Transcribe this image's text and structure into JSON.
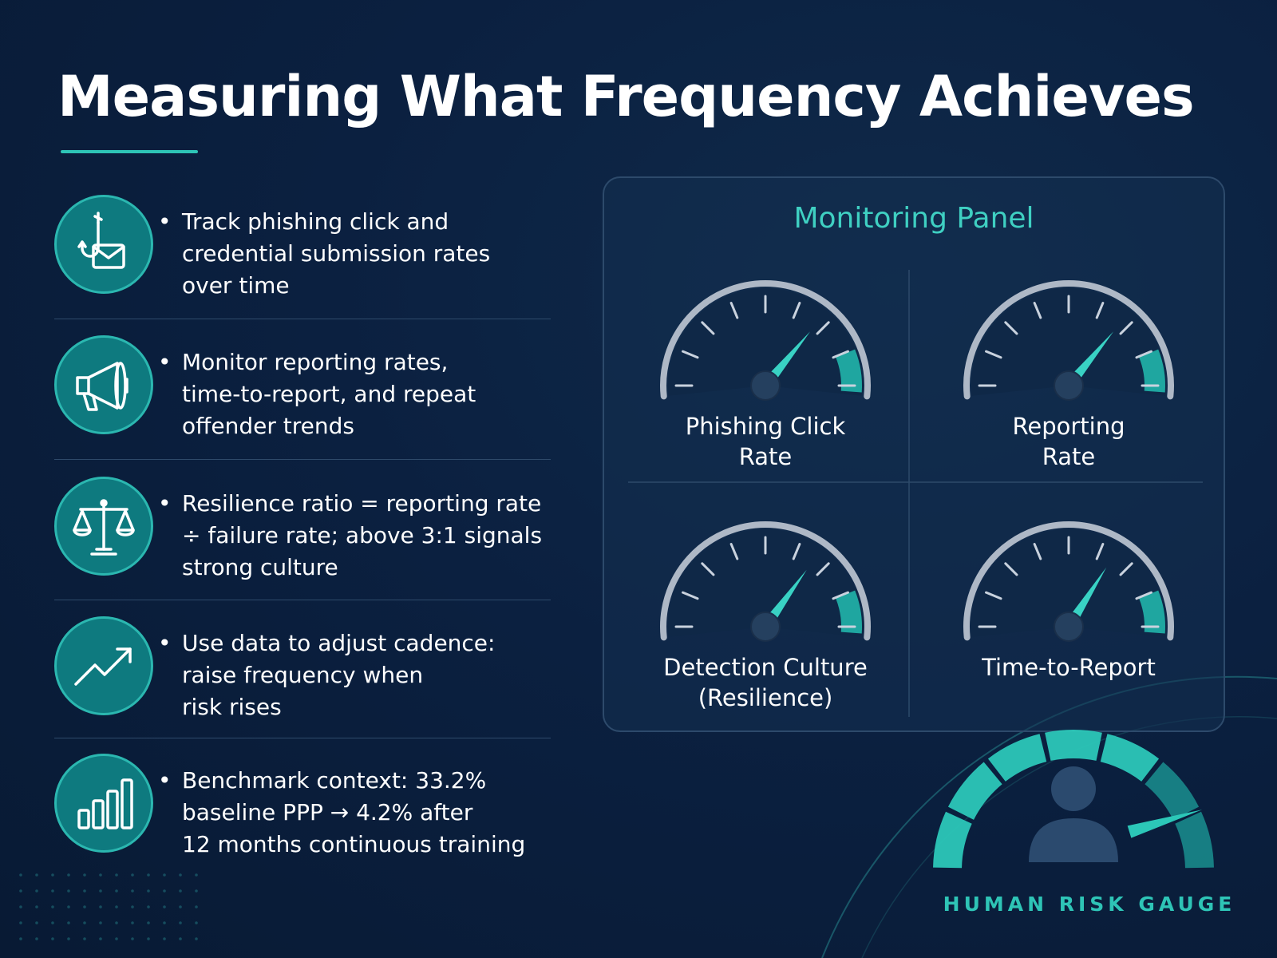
{
  "title": "Measuring What Frequency Achieves",
  "items": [
    {
      "icon": "phishing-hook-envelope-icon",
      "lines": [
        "Track phishing click and",
        "credential submission rates",
        "over time"
      ]
    },
    {
      "icon": "megaphone-icon",
      "lines": [
        "Monitor reporting rates,",
        "time-to-report, and repeat",
        "offender trends"
      ]
    },
    {
      "icon": "balance-scale-icon",
      "lines": [
        "Resilience ratio = reporting rate",
        "÷ failure rate; above 3:1 signals",
        "strong culture"
      ]
    },
    {
      "icon": "trend-up-arrow-icon",
      "lines": [
        "Use data to adjust cadence:",
        "raise frequency when",
        "risk rises"
      ]
    },
    {
      "icon": "bar-chart-icon",
      "lines": [
        "Benchmark context: 33.2%",
        "baseline PPP → 4.2% after",
        "12 months continuous training"
      ]
    }
  ],
  "panel": {
    "title": "Monitoring Panel",
    "gauges": [
      {
        "label_lines": [
          "Phishing Click",
          "Rate"
        ],
        "needle_level": 0.72
      },
      {
        "label_lines": [
          "Reporting",
          "Rate"
        ],
        "needle_level": 0.72
      },
      {
        "label_lines": [
          "Detection Culture",
          "(Resilience)"
        ],
        "needle_level": 0.7
      },
      {
        "label_lines": [
          "Time-to-Report"
        ],
        "needle_level": 0.68
      }
    ]
  },
  "human_risk_gauge": {
    "label": "HUMAN RISK GAUGE",
    "icon": "person-silhouette-icon",
    "needle_level": 0.86
  },
  "colors": {
    "background": "#0b2040",
    "accent_teal": "#2ec4b6",
    "icon_circle": "#0e7a7f",
    "panel_border": "#2d4a6b"
  }
}
